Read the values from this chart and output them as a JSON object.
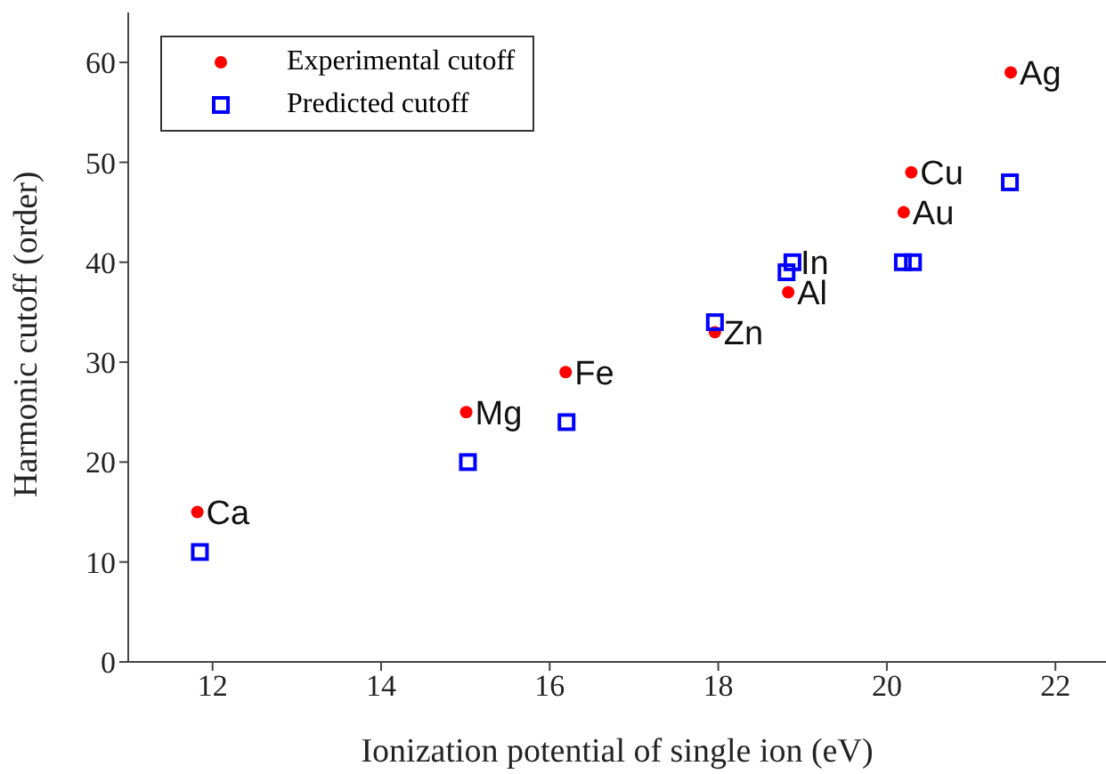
{
  "chart_data": {
    "type": "scatter",
    "xlabel": "Ionization potential of single ion (eV)",
    "ylabel": "Harmonic cutoff (order)",
    "series": [
      {
        "name": "Experimental cutoff",
        "color": "#ff0000",
        "marker": "circle",
        "x": [
          11.82,
          15.01,
          16.19,
          17.96,
          18.83,
          18.87,
          20.2,
          20.29,
          21.47
        ],
        "values": [
          15,
          25,
          29,
          33,
          37,
          null,
          45,
          49,
          59
        ]
      },
      {
        "name": "Predicted cutoff",
        "color": "#0000ff",
        "marker": "square",
        "x": [
          11.85,
          15.03,
          16.2,
          17.96,
          18.81,
          18.88,
          20.19,
          20.31,
          21.46
        ],
        "values": [
          11,
          20,
          24,
          34,
          39,
          40,
          40,
          40,
          48
        ]
      }
    ],
    "annotations": [
      {
        "text": "Ca",
        "x": 11.82,
        "y": 15
      },
      {
        "text": "Mg",
        "x": 15.01,
        "y": 25
      },
      {
        "text": "Fe",
        "x": 16.19,
        "y": 29
      },
      {
        "text": "Zn",
        "x": 17.96,
        "y": 33
      },
      {
        "text": "Al",
        "x": 18.83,
        "y": 37
      },
      {
        "text": "In",
        "x": 18.87,
        "y": 40
      },
      {
        "text": "Au",
        "x": 20.2,
        "y": 45
      },
      {
        "text": "Cu",
        "x": 20.29,
        "y": 49
      },
      {
        "text": "Ag",
        "x": 21.47,
        "y": 59
      }
    ],
    "xlim": [
      11,
      22.6
    ],
    "xticks": [
      12,
      14,
      16,
      18,
      20,
      22
    ],
    "ylim": [
      0,
      65
    ],
    "yticks": [
      0,
      10,
      20,
      30,
      40,
      50,
      60
    ],
    "grid": false,
    "legend": "top left"
  }
}
